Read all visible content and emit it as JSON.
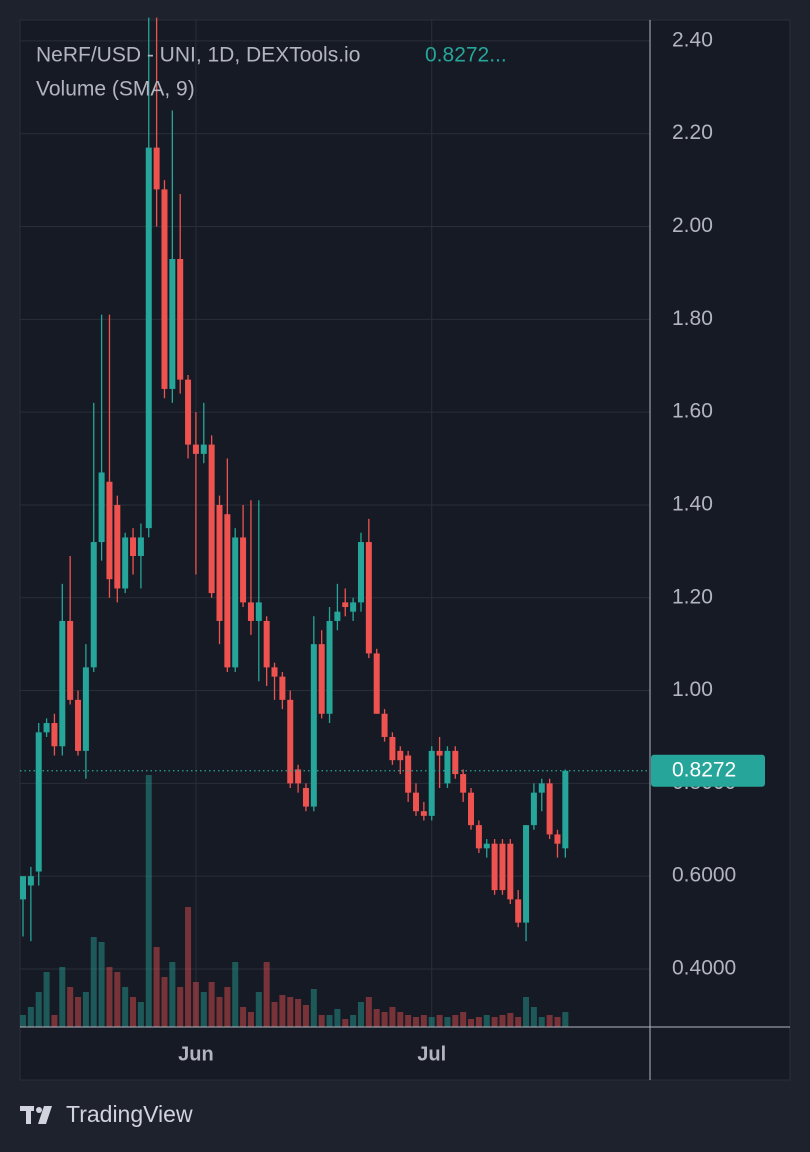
{
  "chart_data": {
    "type": "candlestick",
    "title": "NeRF/USD - UNI, 1D, DEXTools.io",
    "header_price": "0.8272...",
    "subtitle": "Volume (SMA, 9)",
    "brand": "TradingView",
    "up_color": "#26a69a",
    "down_color": "#ef5350",
    "grid": true,
    "last_price": {
      "value": 0.8272,
      "label": "0.8272"
    },
    "categories": [
      null,
      null,
      null,
      null,
      null,
      null,
      null,
      null,
      null,
      null,
      null,
      null,
      null,
      null,
      null,
      null,
      null,
      null,
      null,
      null,
      null,
      null,
      "Jun",
      null,
      null,
      null,
      null,
      null,
      null,
      null,
      null,
      null,
      null,
      null,
      null,
      null,
      null,
      null,
      null,
      null,
      null,
      null,
      null,
      null,
      null,
      null,
      null,
      null,
      null,
      null,
      null,
      null,
      "Jul",
      null,
      null,
      null,
      null,
      null,
      null,
      null,
      null,
      null,
      null,
      null,
      null,
      null,
      null,
      null,
      null,
      null
    ],
    "open": [
      0.55,
      0.58,
      0.61,
      0.91,
      0.93,
      0.88,
      1.15,
      0.98,
      0.87,
      1.05,
      1.32,
      1.45,
      1.4,
      1.22,
      1.33,
      1.29,
      1.35,
      2.17,
      2.08,
      1.65,
      1.93,
      1.67,
      1.53,
      1.51,
      1.53,
      1.4,
      1.38,
      1.05,
      1.33,
      1.19,
      1.15,
      1.15,
      1.05,
      1.03,
      0.98,
      0.83,
      0.79,
      0.75,
      1.1,
      0.95,
      1.15,
      1.19,
      1.17,
      1.19,
      1.32,
      1.08,
      0.95,
      0.9,
      0.87,
      0.86,
      0.78,
      0.74,
      0.73,
      0.87,
      0.8,
      0.87,
      0.82,
      0.78,
      0.71,
      0.66,
      0.67,
      0.67,
      0.67,
      0.55,
      0.5,
      0.71,
      0.78,
      0.8,
      0.69,
      0.66
    ],
    "high": [
      0.58,
      0.62,
      0.93,
      0.94,
      0.95,
      1.23,
      1.29,
      1.0,
      1.1,
      1.62,
      1.81,
      1.81,
      1.42,
      1.34,
      1.35,
      1.36,
      2.45,
      2.45,
      2.1,
      2.25,
      2.07,
      1.68,
      1.6,
      1.62,
      1.55,
      1.42,
      1.5,
      1.35,
      1.4,
      1.41,
      1.41,
      1.16,
      1.06,
      1.04,
      1.0,
      0.84,
      0.8,
      1.16,
      1.13,
      1.18,
      1.23,
      1.22,
      1.2,
      1.34,
      1.37,
      1.09,
      0.96,
      0.91,
      0.88,
      0.87,
      0.8,
      0.76,
      0.88,
      0.9,
      0.88,
      0.88,
      0.83,
      0.79,
      0.72,
      0.68,
      0.68,
      0.68,
      0.68,
      0.57,
      0.71,
      0.8,
      0.81,
      0.81,
      0.7,
      0.83
    ],
    "low": [
      0.47,
      0.46,
      0.58,
      0.9,
      0.86,
      0.86,
      0.97,
      0.86,
      0.81,
      1.04,
      1.28,
      1.2,
      1.19,
      1.21,
      1.25,
      1.22,
      1.33,
      2.0,
      1.63,
      1.62,
      1.64,
      1.5,
      1.25,
      1.49,
      1.2,
      1.1,
      1.04,
      1.04,
      1.18,
      1.12,
      1.02,
      1.01,
      0.98,
      0.96,
      0.79,
      0.78,
      0.74,
      0.74,
      0.94,
      0.93,
      1.13,
      1.16,
      1.15,
      1.17,
      1.07,
      0.95,
      0.89,
      0.84,
      0.82,
      0.76,
      0.73,
      0.72,
      0.72,
      0.79,
      0.79,
      0.81,
      0.76,
      0.7,
      0.65,
      0.64,
      0.56,
      0.56,
      0.54,
      0.49,
      0.46,
      0.7,
      0.74,
      0.68,
      0.64,
      0.64
    ],
    "close": [
      0.6,
      0.6,
      0.91,
      0.93,
      0.88,
      1.15,
      0.98,
      0.87,
      1.05,
      1.32,
      1.47,
      1.24,
      1.22,
      1.33,
      1.29,
      1.33,
      2.17,
      2.08,
      1.65,
      1.93,
      1.67,
      1.53,
      1.51,
      1.53,
      1.21,
      1.15,
      1.05,
      1.33,
      1.19,
      1.15,
      1.19,
      1.05,
      1.03,
      0.98,
      0.8,
      0.8,
      0.75,
      1.1,
      0.95,
      1.15,
      1.17,
      1.18,
      1.19,
      1.32,
      1.08,
      0.95,
      0.9,
      0.85,
      0.85,
      0.78,
      0.74,
      0.73,
      0.87,
      0.86,
      0.87,
      0.82,
      0.78,
      0.71,
      0.66,
      0.67,
      0.57,
      0.57,
      0.55,
      0.5,
      0.71,
      0.78,
      0.8,
      0.69,
      0.67,
      0.8272
    ],
    "volume": [
      12,
      20,
      35,
      55,
      12,
      60,
      40,
      30,
      35,
      90,
      85,
      60,
      55,
      40,
      30,
      25,
      252,
      80,
      50,
      65,
      40,
      120,
      45,
      35,
      45,
      30,
      40,
      65,
      20,
      15,
      35,
      65,
      25,
      32,
      30,
      28,
      22,
      38,
      12,
      12,
      18,
      8,
      12,
      25,
      30,
      18,
      15,
      20,
      15,
      12,
      10,
      12,
      10,
      12,
      10,
      12,
      15,
      8,
      10,
      12,
      10,
      12,
      14,
      10,
      30,
      20,
      10,
      12,
      10,
      15
    ],
    "ylim": [
      0.275,
      2.445
    ],
    "yticks": [
      {
        "value": 2.4,
        "label": "2.40"
      },
      {
        "value": 2.2,
        "label": "2.20"
      },
      {
        "value": 2.0,
        "label": "2.00"
      },
      {
        "value": 1.8,
        "label": "1.80"
      },
      {
        "value": 1.6,
        "label": "1.60"
      },
      {
        "value": 1.4,
        "label": "1.40"
      },
      {
        "value": 1.2,
        "label": "1.20"
      },
      {
        "value": 1.0,
        "label": "1.00"
      },
      {
        "value": 0.8,
        "label": "0.8000"
      },
      {
        "value": 0.6,
        "label": "0.6000"
      },
      {
        "value": 0.4,
        "label": "0.4000"
      }
    ]
  }
}
